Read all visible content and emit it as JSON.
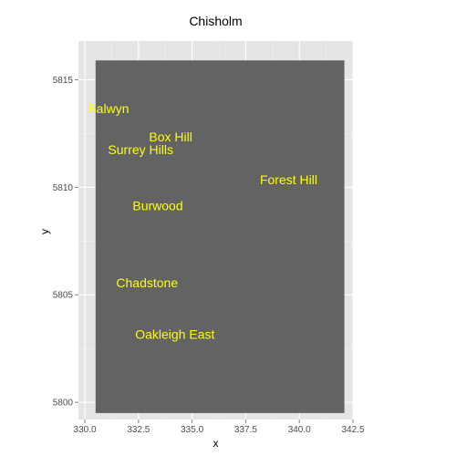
{
  "chart_data": {
    "type": "scatter",
    "title": "Chisholm",
    "xlabel": "x",
    "ylabel": "y",
    "xlim": [
      329.7,
      342.5
    ],
    "ylim": [
      5799.2,
      5816.8
    ],
    "x_ticks": [
      "330.0",
      "332.5",
      "335.0",
      "337.5",
      "340.0",
      "342.5"
    ],
    "x_tick_values": [
      330.0,
      332.5,
      335.0,
      337.5,
      340.0,
      342.5
    ],
    "y_ticks": [
      "5800",
      "5805",
      "5810",
      "5815"
    ],
    "y_tick_values": [
      5800,
      5805,
      5810,
      5815
    ],
    "grid": true,
    "region": {
      "xmin": 330.5,
      "xmax": 342.1,
      "ymin": 5799.5,
      "ymax": 5815.9
    },
    "labels": [
      {
        "text": "Balwyn",
        "x": 331.1,
        "y": 5813.6
      },
      {
        "text": "Box Hill",
        "x": 334.0,
        "y": 5812.3
      },
      {
        "text": "Surrey Hills",
        "x": 332.6,
        "y": 5811.7
      },
      {
        "text": "Forest Hill",
        "x": 339.5,
        "y": 5810.3
      },
      {
        "text": "Burwood",
        "x": 333.4,
        "y": 5809.1
      },
      {
        "text": "Chadstone",
        "x": 332.9,
        "y": 5805.5
      },
      {
        "text": "Oakleigh East",
        "x": 334.2,
        "y": 5803.1
      }
    ]
  },
  "colors": {
    "panel_background": "#e5e5e5",
    "grid_major": "#ffffff",
    "grid_minor": "#f2f2f2",
    "region_fill": "#636363",
    "label_text": "#ffff00",
    "tick_mark": "#7f7f7f"
  }
}
